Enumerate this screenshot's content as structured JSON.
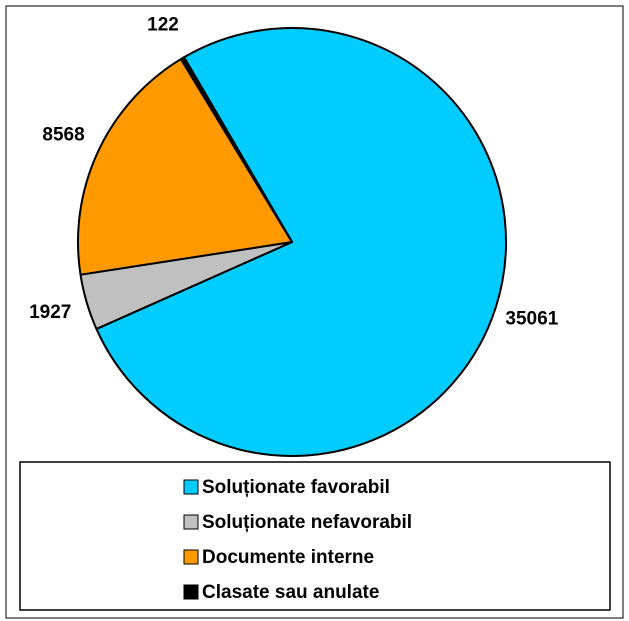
{
  "chart_data": {
    "type": "pie",
    "categories": [
      "Soluționate favorabil",
      "Soluționate nefavorabil",
      "Documente interne",
      "Clasate sau anulate"
    ],
    "values": [
      35061,
      1927,
      8568,
      122
    ],
    "colors": [
      "#00ccff",
      "#c0c0c0",
      "#ff9900",
      "#000000"
    ],
    "legend": "bottom"
  }
}
